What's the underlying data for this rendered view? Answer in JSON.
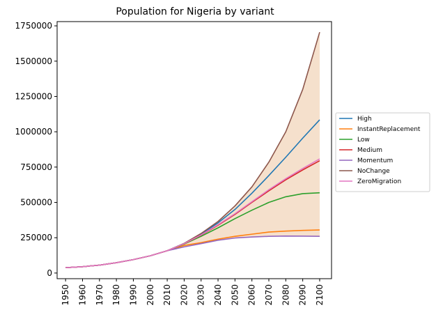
{
  "chart_data": {
    "type": "line",
    "title": "Population for Nigeria by variant",
    "xlabel": "",
    "ylabel": "",
    "xlim": [
      1945,
      2107
    ],
    "ylim": [
      -40000,
      1780000
    ],
    "x_ticks": [
      1950,
      1960,
      1970,
      1980,
      1990,
      2000,
      2010,
      2020,
      2030,
      2040,
      2050,
      2060,
      2070,
      2080,
      2090,
      2100
    ],
    "y_ticks": [
      0,
      250000,
      500000,
      750000,
      1000000,
      1250000,
      1500000,
      1750000
    ],
    "x_tick_rotation": -90,
    "grid": false,
    "legend_position": "right",
    "x": [
      1950,
      1960,
      1970,
      1980,
      1990,
      2000,
      2010,
      2020,
      2030,
      2040,
      2050,
      2060,
      2070,
      2080,
      2090,
      2100
    ],
    "series": [
      {
        "name": "High",
        "color": "#1f77b4",
        "values": [
          38000,
          45000,
          56000,
          73000,
          95000,
          122000,
          158000,
          210000,
          275000,
          355000,
          450000,
          565000,
          690000,
          820000,
          955000,
          1085000
        ]
      },
      {
        "name": "InstantReplacement",
        "color": "#ff7f0e",
        "values": [
          38000,
          45000,
          56000,
          73000,
          95000,
          122000,
          158000,
          195000,
          215000,
          240000,
          260000,
          275000,
          290000,
          297000,
          302000,
          305000
        ]
      },
      {
        "name": "Low",
        "color": "#2ca02c",
        "values": [
          38000,
          45000,
          56000,
          73000,
          95000,
          122000,
          158000,
          205000,
          260000,
          320000,
          385000,
          445000,
          500000,
          540000,
          562000,
          568000
        ]
      },
      {
        "name": "Medium",
        "color": "#d62728",
        "values": [
          38000,
          45000,
          56000,
          73000,
          95000,
          122000,
          158000,
          207000,
          268000,
          338000,
          415000,
          500000,
          582000,
          660000,
          730000,
          795000
        ]
      },
      {
        "name": "Momentum",
        "color": "#9467bd",
        "values": [
          38000,
          45000,
          56000,
          73000,
          95000,
          122000,
          158000,
          185000,
          208000,
          232000,
          248000,
          255000,
          260000,
          262000,
          261000,
          260000
        ]
      },
      {
        "name": "NoChange",
        "color": "#8c564b",
        "values": [
          38000,
          45000,
          56000,
          73000,
          95000,
          122000,
          158000,
          210000,
          280000,
          365000,
          475000,
          610000,
          785000,
          1000000,
          1300000,
          1705000
        ]
      },
      {
        "name": "ZeroMigration",
        "color": "#e377c2",
        "values": [
          38000,
          45000,
          56000,
          73000,
          95000,
          122000,
          158000,
          208000,
          270000,
          342000,
          420000,
          505000,
          590000,
          668000,
          740000,
          808000
        ]
      }
    ],
    "band": {
      "color": "#f5e0cc",
      "from_series": "Momentum",
      "to_series": "NoChange"
    }
  }
}
